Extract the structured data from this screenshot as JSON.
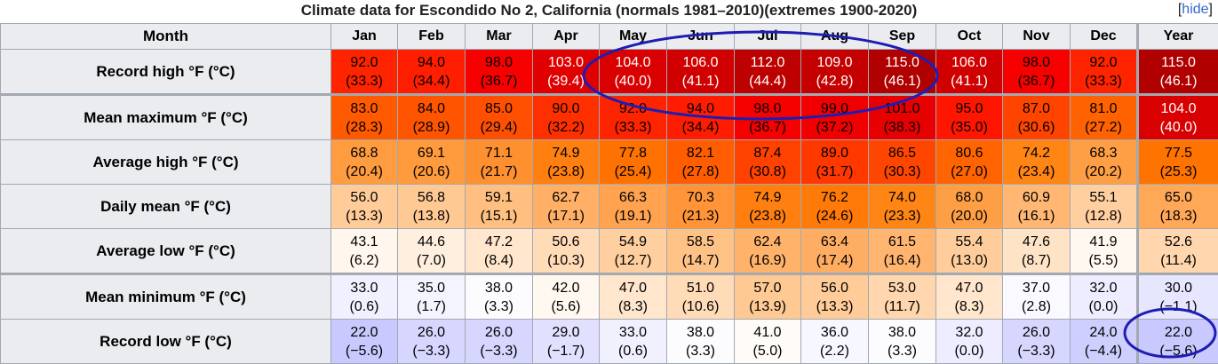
{
  "title": "Climate data for Escondido No 2, California (normals 1981–2010)(extremes 1900-2020)",
  "hide_link": "hide",
  "columns": [
    "Month",
    "Jan",
    "Feb",
    "Mar",
    "Apr",
    "May",
    "Jun",
    "Jul",
    "Aug",
    "Sep",
    "Oct",
    "Nov",
    "Dec",
    "Year"
  ],
  "rows": [
    {
      "label": "Record high °F (°C)",
      "cells": [
        {
          "f": "92.0",
          "c": "(33.3)",
          "bg": "#ff2400",
          "fg": "#000000"
        },
        {
          "f": "94.0",
          "c": "(34.4)",
          "bg": "#ff1f00",
          "fg": "#000000"
        },
        {
          "f": "98.0",
          "c": "(36.7)",
          "bg": "#f60000",
          "fg": "#000000"
        },
        {
          "f": "103.0",
          "c": "(39.4)",
          "bg": "#e00000",
          "fg": "#ffffff"
        },
        {
          "f": "104.0",
          "c": "(40.0)",
          "bg": "#d80000",
          "fg": "#ffffff"
        },
        {
          "f": "106.0",
          "c": "(41.1)",
          "bg": "#d00000",
          "fg": "#ffffff"
        },
        {
          "f": "112.0",
          "c": "(44.4)",
          "bg": "#bd0000",
          "fg": "#ffffff"
        },
        {
          "f": "109.0",
          "c": "(42.8)",
          "bg": "#c40000",
          "fg": "#ffffff"
        },
        {
          "f": "115.0",
          "c": "(46.1)",
          "bg": "#b00000",
          "fg": "#ffffff"
        },
        {
          "f": "106.0",
          "c": "(41.1)",
          "bg": "#d00000",
          "fg": "#ffffff"
        },
        {
          "f": "98.0",
          "c": "(36.7)",
          "bg": "#f60000",
          "fg": "#000000"
        },
        {
          "f": "92.0",
          "c": "(33.3)",
          "bg": "#ff2400",
          "fg": "#000000"
        },
        {
          "f": "115.0",
          "c": "(46.1)",
          "bg": "#b00000",
          "fg": "#ffffff"
        }
      ]
    },
    {
      "label": "Mean maximum °F (°C)",
      "cells": [
        {
          "f": "83.0",
          "c": "(28.3)",
          "bg": "#ff5a00",
          "fg": "#000000"
        },
        {
          "f": "84.0",
          "c": "(28.9)",
          "bg": "#ff5400",
          "fg": "#000000"
        },
        {
          "f": "85.0",
          "c": "(29.4)",
          "bg": "#ff4f00",
          "fg": "#000000"
        },
        {
          "f": "90.0",
          "c": "(32.2)",
          "bg": "#ff3000",
          "fg": "#000000"
        },
        {
          "f": "92.0",
          "c": "(33.3)",
          "bg": "#ff2400",
          "fg": "#000000"
        },
        {
          "f": "94.0",
          "c": "(34.4)",
          "bg": "#ff1c00",
          "fg": "#000000"
        },
        {
          "f": "98.0",
          "c": "(36.7)",
          "bg": "#f60000",
          "fg": "#000000"
        },
        {
          "f": "99.0",
          "c": "(37.2)",
          "bg": "#f00000",
          "fg": "#000000"
        },
        {
          "f": "101.0",
          "c": "(38.3)",
          "bg": "#e80000",
          "fg": "#000000"
        },
        {
          "f": "95.0",
          "c": "(35.0)",
          "bg": "#ff1600",
          "fg": "#000000"
        },
        {
          "f": "87.0",
          "c": "(30.6)",
          "bg": "#ff4400",
          "fg": "#000000"
        },
        {
          "f": "81.0",
          "c": "(27.2)",
          "bg": "#ff6200",
          "fg": "#000000"
        },
        {
          "f": "104.0",
          "c": "(40.0)",
          "bg": "#d80000",
          "fg": "#ffffff"
        }
      ]
    },
    {
      "label": "Average high °F (°C)",
      "cells": [
        {
          "f": "68.8",
          "c": "(20.4)",
          "bg": "#ff9c40",
          "fg": "#000000"
        },
        {
          "f": "69.1",
          "c": "(20.6)",
          "bg": "#ff9a3d",
          "fg": "#000000"
        },
        {
          "f": "71.1",
          "c": "(21.7)",
          "bg": "#ff9030",
          "fg": "#000000"
        },
        {
          "f": "74.9",
          "c": "(23.8)",
          "bg": "#ff8010",
          "fg": "#000000"
        },
        {
          "f": "77.8",
          "c": "(25.4)",
          "bg": "#ff7100",
          "fg": "#000000"
        },
        {
          "f": "82.1",
          "c": "(27.8)",
          "bg": "#ff5d00",
          "fg": "#000000"
        },
        {
          "f": "87.4",
          "c": "(30.8)",
          "bg": "#ff4200",
          "fg": "#000000"
        },
        {
          "f": "89.0",
          "c": "(31.7)",
          "bg": "#ff3800",
          "fg": "#000000"
        },
        {
          "f": "86.5",
          "c": "(30.3)",
          "bg": "#ff4600",
          "fg": "#000000"
        },
        {
          "f": "80.6",
          "c": "(27.0)",
          "bg": "#ff6400",
          "fg": "#000000"
        },
        {
          "f": "74.2",
          "c": "(23.4)",
          "bg": "#ff8515",
          "fg": "#000000"
        },
        {
          "f": "68.3",
          "c": "(20.2)",
          "bg": "#ff9f45",
          "fg": "#000000"
        },
        {
          "f": "77.5",
          "c": "(25.3)",
          "bg": "#ff7300",
          "fg": "#000000"
        }
      ]
    },
    {
      "label": "Daily mean °F (°C)",
      "cells": [
        {
          "f": "56.0",
          "c": "(13.3)",
          "bg": "#ffcc99",
          "fg": "#000000"
        },
        {
          "f": "56.8",
          "c": "(13.8)",
          "bg": "#ffc993",
          "fg": "#000000"
        },
        {
          "f": "59.1",
          "c": "(15.1)",
          "bg": "#ffbf80",
          "fg": "#000000"
        },
        {
          "f": "62.7",
          "c": "(17.1)",
          "bg": "#ffb066",
          "fg": "#000000"
        },
        {
          "f": "66.3",
          "c": "(19.1)",
          "bg": "#ffa350",
          "fg": "#000000"
        },
        {
          "f": "70.3",
          "c": "(21.3)",
          "bg": "#ff9538",
          "fg": "#000000"
        },
        {
          "f": "74.9",
          "c": "(23.8)",
          "bg": "#ff8010",
          "fg": "#000000"
        },
        {
          "f": "76.2",
          "c": "(24.6)",
          "bg": "#ff7a08",
          "fg": "#000000"
        },
        {
          "f": "74.0",
          "c": "(23.3)",
          "bg": "#ff8515",
          "fg": "#000000"
        },
        {
          "f": "68.0",
          "c": "(20.0)",
          "bg": "#ff9f45",
          "fg": "#000000"
        },
        {
          "f": "60.9",
          "c": "(16.1)",
          "bg": "#ffb773",
          "fg": "#000000"
        },
        {
          "f": "55.1",
          "c": "(12.8)",
          "bg": "#ffcf9f",
          "fg": "#000000"
        },
        {
          "f": "65.0",
          "c": "(18.3)",
          "bg": "#ffa857",
          "fg": "#000000"
        }
      ]
    },
    {
      "label": "Average low °F (°C)",
      "cells": [
        {
          "f": "43.1",
          "c": "(6.2)",
          "bg": "#fff6ed",
          "fg": "#000000"
        },
        {
          "f": "44.6",
          "c": "(7.0)",
          "bg": "#ffefdf",
          "fg": "#000000"
        },
        {
          "f": "47.2",
          "c": "(8.4)",
          "bg": "#ffe6cc",
          "fg": "#000000"
        },
        {
          "f": "50.6",
          "c": "(10.3)",
          "bg": "#ffdbb8",
          "fg": "#000000"
        },
        {
          "f": "54.9",
          "c": "(12.7)",
          "bg": "#ffcf9f",
          "fg": "#000000"
        },
        {
          "f": "58.5",
          "c": "(14.7)",
          "bg": "#ffc286",
          "fg": "#000000"
        },
        {
          "f": "62.4",
          "c": "(16.9)",
          "bg": "#ffb26a",
          "fg": "#000000"
        },
        {
          "f": "63.4",
          "c": "(17.4)",
          "bg": "#ffad62",
          "fg": "#000000"
        },
        {
          "f": "61.5",
          "c": "(16.4)",
          "bg": "#ffb570",
          "fg": "#000000"
        },
        {
          "f": "55.4",
          "c": "(13.0)",
          "bg": "#ffcd9b",
          "fg": "#000000"
        },
        {
          "f": "47.6",
          "c": "(8.7)",
          "bg": "#ffe3c7",
          "fg": "#000000"
        },
        {
          "f": "41.9",
          "c": "(5.5)",
          "bg": "#fff8f1",
          "fg": "#000000"
        },
        {
          "f": "52.6",
          "c": "(11.4)",
          "bg": "#ffd6ad",
          "fg": "#000000"
        }
      ]
    },
    {
      "label": "Mean minimum °F (°C)",
      "cells": [
        {
          "f": "33.0",
          "c": "(0.6)",
          "bg": "#f0f0ff",
          "fg": "#000000"
        },
        {
          "f": "35.0",
          "c": "(1.7)",
          "bg": "#f4f4ff",
          "fg": "#000000"
        },
        {
          "f": "38.0",
          "c": "(3.3)",
          "bg": "#fcfcff",
          "fg": "#000000"
        },
        {
          "f": "42.0",
          "c": "(5.6)",
          "bg": "#fff8f1",
          "fg": "#000000"
        },
        {
          "f": "47.0",
          "c": "(8.3)",
          "bg": "#ffe6cc",
          "fg": "#000000"
        },
        {
          "f": "51.0",
          "c": "(10.6)",
          "bg": "#ffdbb8",
          "fg": "#000000"
        },
        {
          "f": "57.0",
          "c": "(13.9)",
          "bg": "#ffc993",
          "fg": "#000000"
        },
        {
          "f": "56.0",
          "c": "(13.3)",
          "bg": "#ffcc99",
          "fg": "#000000"
        },
        {
          "f": "53.0",
          "c": "(11.7)",
          "bg": "#ffd6ad",
          "fg": "#000000"
        },
        {
          "f": "47.0",
          "c": "(8.3)",
          "bg": "#ffe6cc",
          "fg": "#000000"
        },
        {
          "f": "37.0",
          "c": "(2.8)",
          "bg": "#f9f9ff",
          "fg": "#000000"
        },
        {
          "f": "32.0",
          "c": "(0.0)",
          "bg": "#ededff",
          "fg": "#000000"
        },
        {
          "f": "30.0",
          "c": "(−1.1)",
          "bg": "#e6e6ff",
          "fg": "#000000"
        }
      ]
    },
    {
      "label": "Record low °F (°C)",
      "cells": [
        {
          "f": "22.0",
          "c": "(−5.6)",
          "bg": "#c9c9ff",
          "fg": "#000000"
        },
        {
          "f": "26.0",
          "c": "(−3.3)",
          "bg": "#d6d6ff",
          "fg": "#000000"
        },
        {
          "f": "26.0",
          "c": "(−3.3)",
          "bg": "#d6d6ff",
          "fg": "#000000"
        },
        {
          "f": "29.0",
          "c": "(−1.7)",
          "bg": "#e1e1ff",
          "fg": "#000000"
        },
        {
          "f": "33.0",
          "c": "(0.6)",
          "bg": "#f0f0ff",
          "fg": "#000000"
        },
        {
          "f": "38.0",
          "c": "(3.3)",
          "bg": "#fcfcff",
          "fg": "#000000"
        },
        {
          "f": "41.0",
          "c": "(5.0)",
          "bg": "#fffbf6",
          "fg": "#000000"
        },
        {
          "f": "36.0",
          "c": "(2.2)",
          "bg": "#f7f7ff",
          "fg": "#000000"
        },
        {
          "f": "38.0",
          "c": "(3.3)",
          "bg": "#fcfcff",
          "fg": "#000000"
        },
        {
          "f": "32.0",
          "c": "(0.0)",
          "bg": "#ededff",
          "fg": "#000000"
        },
        {
          "f": "26.0",
          "c": "(−3.3)",
          "bg": "#d6d6ff",
          "fg": "#000000"
        },
        {
          "f": "24.0",
          "c": "(−4.4)",
          "bg": "#cfcfff",
          "fg": "#000000"
        },
        {
          "f": "22.0",
          "c": "(−5.6)",
          "bg": "#c9c9ff",
          "fg": "#000000"
        }
      ]
    }
  ],
  "annotations": {
    "stroke": "#1d1db5"
  }
}
